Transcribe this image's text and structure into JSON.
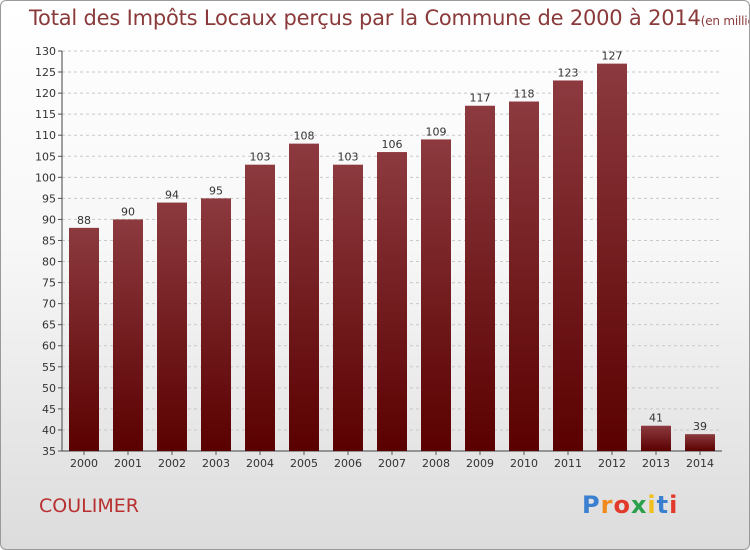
{
  "title": "Total des Impôts Locaux perçus par la Commune de 2000 à 2014",
  "title_unit": "(en milliers d'€)",
  "commune": "COULIMER",
  "logo": {
    "text": "Proxiti",
    "letters": [
      "P",
      "r",
      "o",
      "x",
      "i",
      "t",
      "i"
    ],
    "colors": [
      "#3a7fd0",
      "#f08a1c",
      "#e23a2a",
      "#2aa04a",
      "#f0c01c",
      "#3a7fd0",
      "#e23a2a"
    ]
  },
  "colors": {
    "bar_top": "#8c3a3f",
    "bar_bottom": "#5a0000",
    "title": "#8a3a3a",
    "commune": "#b83030"
  },
  "chart_data": {
    "type": "bar",
    "title": "Total des Impôts Locaux perçus par la Commune de 2000 à 2014",
    "xlabel": "",
    "ylabel": "",
    "categories": [
      "2000",
      "2001",
      "2002",
      "2003",
      "2004",
      "2005",
      "2006",
      "2007",
      "2008",
      "2009",
      "2010",
      "2011",
      "2012",
      "2013",
      "2014"
    ],
    "values": [
      88,
      90,
      94,
      95,
      103,
      108,
      103,
      106,
      109,
      117,
      118,
      123,
      127,
      41,
      39
    ],
    "ylim": [
      35,
      130
    ],
    "yticks": [
      35,
      40,
      45,
      50,
      55,
      60,
      65,
      70,
      75,
      80,
      85,
      90,
      95,
      100,
      105,
      110,
      115,
      120,
      125,
      130
    ],
    "grid": true
  }
}
